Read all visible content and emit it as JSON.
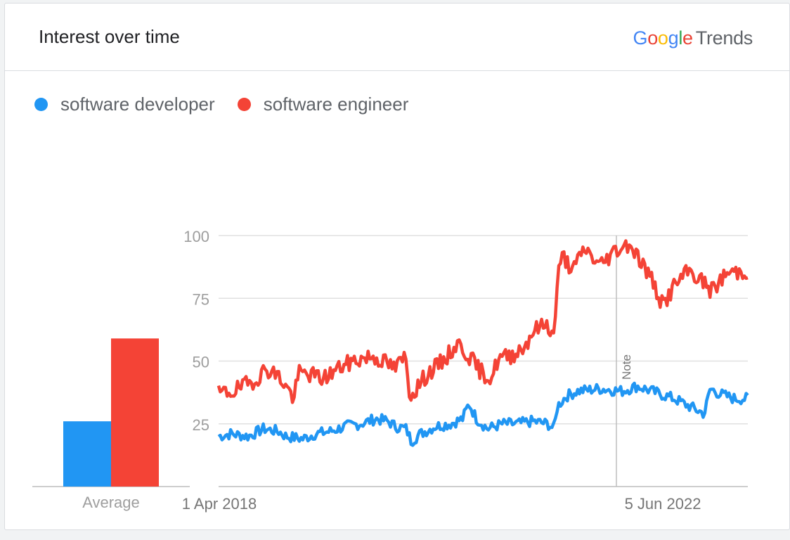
{
  "header": {
    "title": "Interest over time",
    "logo_google": [
      "G",
      "o",
      "o",
      "g",
      "l",
      "e"
    ],
    "logo_trends": "Trends"
  },
  "legend": {
    "items": [
      {
        "label": "software developer",
        "color": "#2196f3"
      },
      {
        "label": "software engineer",
        "color": "#f44336"
      }
    ]
  },
  "note_label": "Note",
  "chart_data": {
    "type": "line",
    "x_axis": {
      "start": "1 Apr 2018",
      "end": "25 Feb 2024",
      "tick_labels": [
        "1 Apr 2018",
        "5 Jun 2022"
      ],
      "note_date": "2022-01-01"
    },
    "y_axis": {
      "ticks": [
        25,
        50,
        75,
        100
      ],
      "ylim": [
        0,
        100
      ]
    },
    "grid": true,
    "legend_position": "top-left",
    "average_bars": {
      "label": "Average",
      "values": [
        {
          "series": "software developer",
          "value": 26
        },
        {
          "series": "software engineer",
          "value": 59
        }
      ]
    },
    "series": [
      {
        "name": "software developer",
        "color": "#2196f3",
        "keypoints": [
          [
            "2018-04-01",
            20
          ],
          [
            "2018-05-20",
            21
          ],
          [
            "2018-08-01",
            20
          ],
          [
            "2018-10-01",
            23
          ],
          [
            "2018-12-01",
            22
          ],
          [
            "2019-01-01",
            20
          ],
          [
            "2019-03-10",
            19
          ],
          [
            "2019-05-01",
            21
          ],
          [
            "2019-07-01",
            22
          ],
          [
            "2019-09-01",
            24
          ],
          [
            "2019-11-01",
            25
          ],
          [
            "2020-01-01",
            27
          ],
          [
            "2020-02-20",
            26
          ],
          [
            "2020-03-20",
            24
          ],
          [
            "2020-05-05",
            23
          ],
          [
            "2020-05-25",
            18
          ],
          [
            "2020-07-01",
            21
          ],
          [
            "2020-09-01",
            24
          ],
          [
            "2020-11-01",
            25
          ],
          [
            "2020-12-20",
            27
          ],
          [
            "2021-01-15",
            33
          ],
          [
            "2021-02-15",
            27
          ],
          [
            "2021-04-01",
            23
          ],
          [
            "2021-06-01",
            25
          ],
          [
            "2021-08-01",
            25
          ],
          [
            "2021-10-01",
            26
          ],
          [
            "2021-12-01",
            25
          ],
          [
            "2021-12-28",
            23
          ],
          [
            "2022-01-10",
            32
          ],
          [
            "2022-02-15",
            36
          ],
          [
            "2022-04-01",
            38
          ],
          [
            "2022-07-01",
            39
          ],
          [
            "2022-10-01",
            38
          ],
          [
            "2022-12-01",
            40
          ],
          [
            "2023-03-01",
            37
          ],
          [
            "2023-05-01",
            35
          ],
          [
            "2023-07-01",
            32
          ],
          [
            "2023-09-01",
            29
          ],
          [
            "2023-09-25",
            39
          ],
          [
            "2023-11-01",
            37
          ],
          [
            "2024-01-01",
            35
          ],
          [
            "2024-02-25",
            35
          ]
        ]
      },
      {
        "name": "software engineer",
        "color": "#f44336",
        "keypoints": [
          [
            "2018-04-01",
            37
          ],
          [
            "2018-06-01",
            38
          ],
          [
            "2018-08-01",
            41
          ],
          [
            "2018-09-01",
            43
          ],
          [
            "2018-10-15",
            47
          ],
          [
            "2018-12-01",
            44
          ],
          [
            "2019-01-01",
            40
          ],
          [
            "2019-02-01",
            35
          ],
          [
            "2019-02-20",
            45
          ],
          [
            "2019-04-01",
            45
          ],
          [
            "2019-06-01",
            43
          ],
          [
            "2019-08-01",
            47
          ],
          [
            "2019-10-01",
            50
          ],
          [
            "2019-12-15",
            52
          ],
          [
            "2020-02-01",
            50
          ],
          [
            "2020-03-20",
            47
          ],
          [
            "2020-05-01",
            52
          ],
          [
            "2020-05-20",
            36
          ],
          [
            "2020-06-20",
            40
          ],
          [
            "2020-08-01",
            45
          ],
          [
            "2020-10-01",
            50
          ],
          [
            "2020-12-01",
            57
          ],
          [
            "2021-01-15",
            52
          ],
          [
            "2021-03-01",
            46
          ],
          [
            "2021-04-15",
            43
          ],
          [
            "2021-05-15",
            51
          ],
          [
            "2021-07-01",
            52
          ],
          [
            "2021-09-01",
            56
          ],
          [
            "2021-10-01",
            62
          ],
          [
            "2021-12-01",
            65
          ],
          [
            "2021-12-28",
            59
          ],
          [
            "2022-01-10",
            83
          ],
          [
            "2022-02-01",
            92
          ],
          [
            "2022-03-15",
            86
          ],
          [
            "2022-05-01",
            95
          ],
          [
            "2022-07-01",
            88
          ],
          [
            "2022-09-01",
            94
          ],
          [
            "2022-11-01",
            97
          ],
          [
            "2022-12-15",
            90
          ],
          [
            "2023-02-01",
            82
          ],
          [
            "2023-03-15",
            72
          ],
          [
            "2023-05-01",
            80
          ],
          [
            "2023-07-01",
            86
          ],
          [
            "2023-09-01",
            81
          ],
          [
            "2023-10-01",
            78
          ],
          [
            "2023-12-01",
            85
          ],
          [
            "2024-02-25",
            86
          ]
        ]
      }
    ]
  }
}
